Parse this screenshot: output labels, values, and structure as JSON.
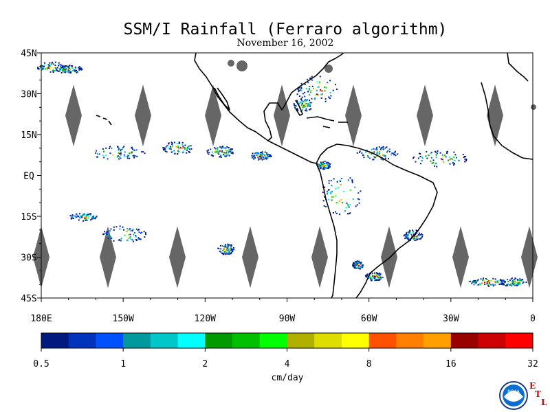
{
  "title": "SSM/I Rainfall (Ferraro algorithm)",
  "subtitle": "November 16, 2002",
  "map": {
    "lon_range": [
      180,
      360
    ],
    "lat_range": [
      -45,
      45
    ],
    "lat_labels": [
      {
        "lat": 45,
        "text": "45N"
      },
      {
        "lat": 30,
        "text": "30N"
      },
      {
        "lat": 15,
        "text": "15N"
      },
      {
        "lat": 0,
        "text": "EQ"
      },
      {
        "lat": -15,
        "text": "15S"
      },
      {
        "lat": -30,
        "text": "30S"
      },
      {
        "lat": -45,
        "text": "45S"
      }
    ],
    "lon_labels": [
      {
        "lon": 180,
        "text": "180E"
      },
      {
        "lon": 210,
        "text": "150W"
      },
      {
        "lon": 240,
        "text": "120W"
      },
      {
        "lon": 270,
        "text": "90W"
      },
      {
        "lon": 300,
        "text": "60W"
      },
      {
        "lon": 330,
        "text": "30W"
      },
      {
        "lon": 360,
        "text": "0"
      }
    ],
    "colors": {
      "no_data": "#666666",
      "coast": "#000000"
    }
  },
  "colorbar": {
    "colors": [
      "#001a80",
      "#0033bb",
      "#0050ff",
      "#00999e",
      "#00c8c8",
      "#00ffff",
      "#009900",
      "#00c000",
      "#00ff00",
      "#b0b000",
      "#dddd00",
      "#ffff00",
      "#ff5000",
      "#ff8000",
      "#ffa000",
      "#990000",
      "#cc0000",
      "#ff0000"
    ],
    "tick_labels": [
      "0.5",
      "1",
      "2",
      "4",
      "8",
      "16",
      "32"
    ],
    "unit": "cm/day"
  },
  "logo": {
    "noaa_text": "NOAA",
    "etl_letters": [
      "E",
      "T",
      "L"
    ]
  }
}
